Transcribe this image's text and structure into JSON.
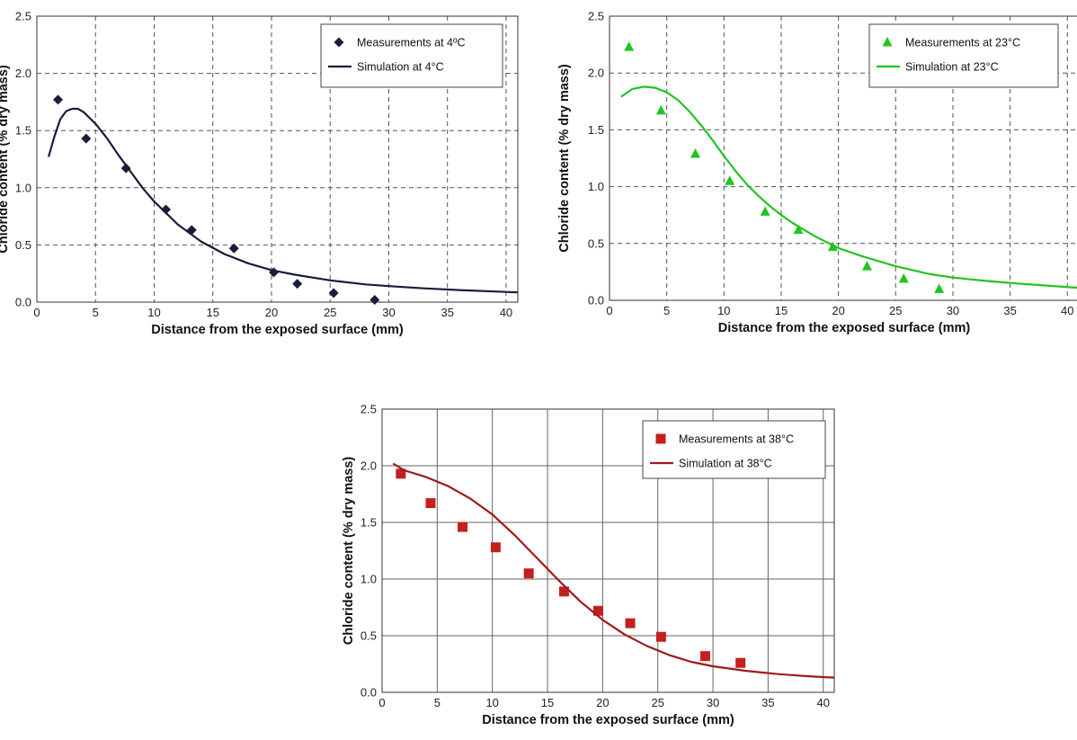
{
  "chart_data": [
    {
      "type": "scatter",
      "title": "",
      "xlabel": "Distance from the exposed surface (mm)",
      "ylabel": "Chloride content (% dry mass)",
      "xlim": [
        0,
        41
      ],
      "ylim": [
        0,
        2.5
      ],
      "xticks": [
        "0",
        "5",
        "10",
        "15",
        "20",
        "25",
        "30",
        "35",
        "40"
      ],
      "yticks": [
        "0.0",
        "0.5",
        "1.0",
        "1.5",
        "2.0",
        "2.5"
      ],
      "grid": "dashed",
      "legend_position": "top-right",
      "series": [
        {
          "name": "Measurements at 4ºC",
          "kind": "scatter",
          "marker": "diamond",
          "color": "#1a1d3a",
          "x": [
            1.8,
            4.2,
            7.6,
            11.0,
            13.2,
            16.8,
            20.2,
            22.2,
            25.3,
            28.8
          ],
          "y": [
            1.77,
            1.43,
            1.17,
            0.81,
            0.63,
            0.47,
            0.26,
            0.16,
            0.08,
            0.02
          ]
        },
        {
          "name": "Simulation at 4°C",
          "kind": "line",
          "color": "#1a1d3a",
          "x": [
            1,
            1.5,
            2,
            2.5,
            3,
            3.5,
            4,
            5,
            6,
            7,
            8,
            9,
            10,
            12,
            14,
            16,
            18,
            20,
            22,
            25,
            28,
            30,
            33,
            36,
            41
          ],
          "y": [
            1.27,
            1.45,
            1.6,
            1.67,
            1.69,
            1.69,
            1.66,
            1.56,
            1.43,
            1.28,
            1.14,
            1.0,
            0.88,
            0.68,
            0.53,
            0.42,
            0.34,
            0.28,
            0.24,
            0.19,
            0.155,
            0.14,
            0.12,
            0.105,
            0.085
          ]
        }
      ]
    },
    {
      "type": "scatter",
      "title": "",
      "xlabel": "Distance from the exposed surface (mm)",
      "ylabel": "Chloride content (% dry mass)",
      "xlim": [
        0,
        41
      ],
      "ylim": [
        0,
        2.5
      ],
      "xticks": [
        "0",
        "5",
        "10",
        "15",
        "20",
        "25",
        "30",
        "35",
        "40"
      ],
      "yticks": [
        "0.0",
        "0.5",
        "1.0",
        "1.5",
        "2.0",
        "2.5"
      ],
      "grid": "dashed",
      "legend_position": "top-right",
      "series": [
        {
          "name": "Measurements at 23°C",
          "kind": "scatter",
          "marker": "triangle",
          "color": "#22c422",
          "x": [
            1.7,
            4.5,
            7.5,
            10.5,
            13.6,
            16.5,
            19.5,
            22.5,
            25.7,
            28.8
          ],
          "y": [
            2.23,
            1.67,
            1.29,
            1.05,
            0.78,
            0.62,
            0.47,
            0.3,
            0.19,
            0.1
          ]
        },
        {
          "name": "Simulation at 23°C",
          "kind": "line",
          "color": "#22c422",
          "x": [
            1,
            2,
            3,
            4,
            5,
            6,
            7,
            8,
            9,
            10,
            11,
            12,
            13,
            14,
            15,
            16,
            18,
            20,
            22,
            25,
            28,
            30,
            33,
            36,
            41
          ],
          "y": [
            1.79,
            1.86,
            1.88,
            1.87,
            1.83,
            1.76,
            1.66,
            1.54,
            1.41,
            1.27,
            1.14,
            1.02,
            0.92,
            0.83,
            0.75,
            0.68,
            0.56,
            0.46,
            0.39,
            0.3,
            0.23,
            0.2,
            0.17,
            0.145,
            0.11
          ]
        }
      ]
    },
    {
      "type": "scatter",
      "title": "",
      "xlabel": "Distance from the exposed surface (mm)",
      "ylabel": "Chloride content (% dry mass)",
      "xlim": [
        0,
        41
      ],
      "ylim": [
        0,
        2.5
      ],
      "xticks": [
        "0",
        "5",
        "10",
        "15",
        "20",
        "25",
        "30",
        "35",
        "40"
      ],
      "yticks": [
        "0.0",
        "0.5",
        "1.0",
        "1.5",
        "2.0",
        "2.5"
      ],
      "grid": "solid",
      "legend_position": "top-right",
      "series": [
        {
          "name": "Measurements at 38°C",
          "kind": "scatter",
          "marker": "square",
          "color": "#c42020",
          "x": [
            1.7,
            4.4,
            7.3,
            10.3,
            13.3,
            16.5,
            19.6,
            22.5,
            25.3,
            29.3,
            32.5
          ],
          "y": [
            1.93,
            1.67,
            1.46,
            1.28,
            1.05,
            0.89,
            0.72,
            0.61,
            0.49,
            0.32,
            0.26
          ]
        },
        {
          "name": "Simulation at 38°C",
          "kind": "line",
          "color": "#a01a1a",
          "x": [
            1,
            2,
            4,
            6,
            8,
            10,
            12,
            14,
            16,
            18,
            20,
            22,
            24,
            26,
            28,
            30,
            33,
            36,
            39,
            41
          ],
          "y": [
            2.02,
            1.96,
            1.9,
            1.82,
            1.71,
            1.57,
            1.39,
            1.19,
            0.99,
            0.8,
            0.64,
            0.51,
            0.41,
            0.33,
            0.27,
            0.23,
            0.19,
            0.16,
            0.14,
            0.13
          ]
        }
      ]
    }
  ]
}
